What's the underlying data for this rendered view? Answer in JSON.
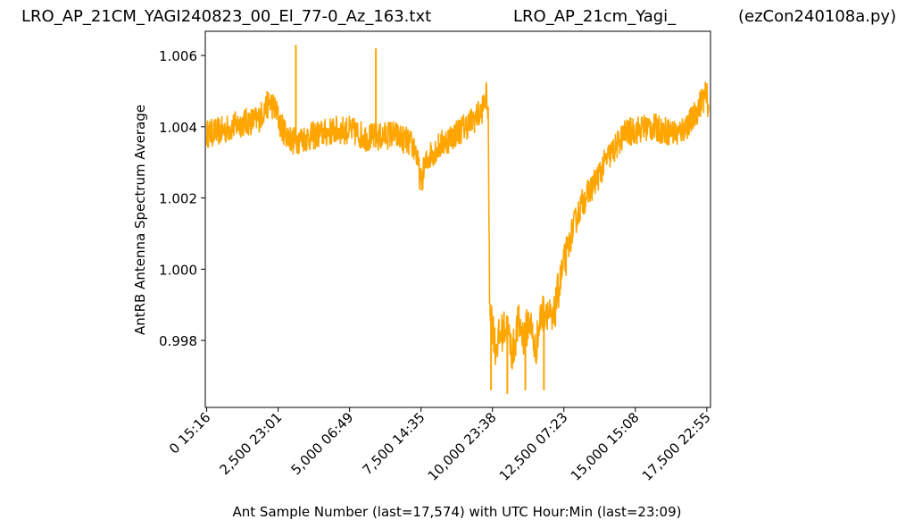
{
  "header": {
    "left": "LRO_AP_21CM_YAGI240823_00_El_77-0_Az_163.txt",
    "center": "LRO_AP_21cm_Yagi_",
    "right": "(ezCon240108a.py)"
  },
  "chart_data": {
    "type": "line",
    "xlabel": "Ant Sample Number (last=17,574) with UTC Hour:Min (last=23:09)",
    "ylabel": "AntRB Antenna Spectrum Average",
    "xlim": [
      -50,
      17630
    ],
    "ylim": [
      0.99612,
      1.00668
    ],
    "grid": false,
    "line_color": "#FFA500",
    "x_ticks": [
      {
        "value": 0,
        "label": "0  15:16"
      },
      {
        "value": 2500,
        "label": "2,500  23:01"
      },
      {
        "value": 5000,
        "label": "5,000  06:49"
      },
      {
        "value": 7500,
        "label": "7,500  14:35"
      },
      {
        "value": 10000,
        "label": "10,000  23:38"
      },
      {
        "value": 12500,
        "label": "12,500  07:23"
      },
      {
        "value": 15000,
        "label": "15,000  15:08"
      },
      {
        "value": 17500,
        "label": "17,500  22:55"
      }
    ],
    "y_ticks": [
      {
        "value": 0.998,
        "label": "0.998"
      },
      {
        "value": 1.0,
        "label": "1.000"
      },
      {
        "value": 1.002,
        "label": "1.002"
      },
      {
        "value": 1.004,
        "label": "1.004"
      },
      {
        "value": 1.006,
        "label": "1.006"
      }
    ],
    "series": [
      {
        "x": [
          0,
          600,
          1200,
          1800,
          2200,
          2400,
          2600,
          3000,
          3500,
          4000,
          4500,
          5000,
          5300,
          5600,
          6000,
          6500,
          7000,
          7300,
          7500,
          7600,
          7800,
          8200,
          8700,
          9200,
          9600,
          9800,
          9850,
          9900,
          10000,
          10100,
          10300,
          10500,
          10700,
          10900,
          11100,
          11300,
          11500,
          11700,
          11900,
          12100,
          12300,
          12500,
          12800,
          13100,
          13400,
          13700,
          14000,
          14300,
          14600,
          15000,
          15500,
          16000,
          16500,
          17000,
          17300,
          17500,
          17574
        ],
        "y": [
          1.0038,
          1.0039,
          1.0041,
          1.0042,
          1.0047,
          1.0045,
          1.004,
          1.0036,
          1.0037,
          1.0038,
          1.0039,
          1.0039,
          1.0038,
          1.0037,
          1.0037,
          1.0038,
          1.0036,
          1.0034,
          1.0024,
          1.0028,
          1.0032,
          1.0035,
          1.0038,
          1.0041,
          1.0044,
          1.0049,
          1.0042,
          0.9992,
          0.9985,
          0.9978,
          0.9982,
          0.9984,
          0.9976,
          0.9985,
          0.9981,
          0.9986,
          0.9977,
          0.9987,
          0.9989,
          0.9984,
          0.9994,
          1.0001,
          1.0011,
          1.0018,
          1.0022,
          1.0026,
          1.0031,
          1.0034,
          1.0038,
          1.0039,
          1.004,
          1.0039,
          1.0038,
          1.0042,
          1.0047,
          1.0049,
          1.0044
        ]
      }
    ],
    "spikes": [
      {
        "x": 3120,
        "y": 1.0063
      },
      {
        "x": 5920,
        "y": 1.0062
      },
      {
        "x": 9950,
        "y": 0.9966
      },
      {
        "x": 10520,
        "y": 0.9965
      },
      {
        "x": 11150,
        "y": 0.9966
      },
      {
        "x": 11800,
        "y": 0.9966
      }
    ]
  }
}
